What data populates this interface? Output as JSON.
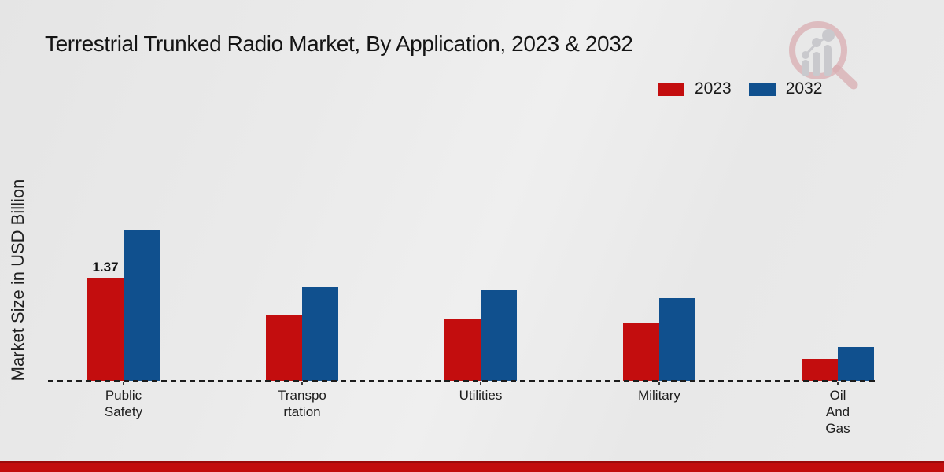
{
  "page": {
    "title": "Terrestrial Trunked Radio Market, By Application, 2023 & 2032",
    "y_axis_label": "Market Size in USD Billion"
  },
  "legend": {
    "items": [
      {
        "label": "2023",
        "color": "#c30d0e"
      },
      {
        "label": "2032",
        "color": "#10508e"
      }
    ],
    "position": "top-right"
  },
  "colors": {
    "series_2023": "#c30d0e",
    "series_2032": "#10508e",
    "background": "#e9e9e9",
    "bottom_strip": "#c20d0d",
    "axis_line": "#1c1c1c",
    "logo_ring": "#d9aeb2",
    "logo_bars": "#c9c9cd"
  },
  "chart_data": {
    "type": "bar",
    "title": "Terrestrial Trunked Radio Market, By Application, 2023 & 2032",
    "xlabel": "",
    "ylabel": "Market Size in USD Billion",
    "categories": [
      "Public Safety",
      "Transportation",
      "Utilities",
      "Military",
      "Oil And Gas"
    ],
    "category_label_lines": [
      [
        "Public",
        "Safety"
      ],
      [
        "Transpo",
        "rtation"
      ],
      [
        "Utilities"
      ],
      [
        "Military"
      ],
      [
        "Oil",
        "And",
        "Gas"
      ]
    ],
    "series": [
      {
        "name": "2023",
        "color": "#c30d0e",
        "values": [
          1.37,
          0.87,
          0.82,
          0.76,
          0.29
        ]
      },
      {
        "name": "2032",
        "color": "#10508e",
        "values": [
          2.0,
          1.25,
          1.2,
          1.1,
          0.45
        ]
      }
    ],
    "annotations": [
      {
        "series": "2023",
        "category_index": 0,
        "text": "1.37"
      }
    ],
    "ylim": [
      0,
      2.2
    ],
    "grid": false,
    "axis_style": "dashed-baseline-only",
    "legend_position": "top-right"
  }
}
